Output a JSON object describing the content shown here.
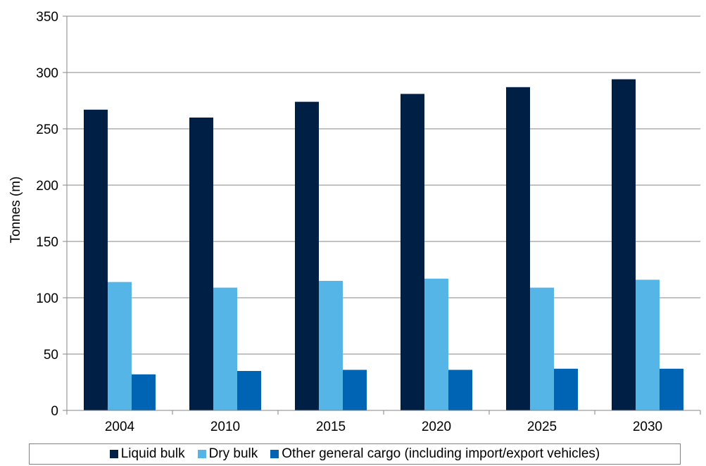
{
  "chart_data": {
    "type": "bar",
    "title": "",
    "xlabel": "",
    "ylabel": "Tonnes (m)",
    "ylim": [
      0,
      350
    ],
    "yticks": [
      0,
      50,
      100,
      150,
      200,
      250,
      300,
      350
    ],
    "categories": [
      "2004",
      "2010",
      "2015",
      "2020",
      "2025",
      "2030"
    ],
    "series": [
      {
        "name": "Liquid bulk",
        "color": "#001f45",
        "values": [
          267,
          260,
          274,
          281,
          287,
          294
        ]
      },
      {
        "name": "Dry bulk",
        "color": "#55b5e6",
        "values": [
          114,
          109,
          115,
          117,
          109,
          116
        ]
      },
      {
        "name": "Other general cargo (including import/export vehicles)",
        "color": "#0064b4",
        "values": [
          32,
          35,
          36,
          36,
          37,
          37
        ]
      }
    ],
    "grid": true,
    "legend_position": "bottom"
  }
}
